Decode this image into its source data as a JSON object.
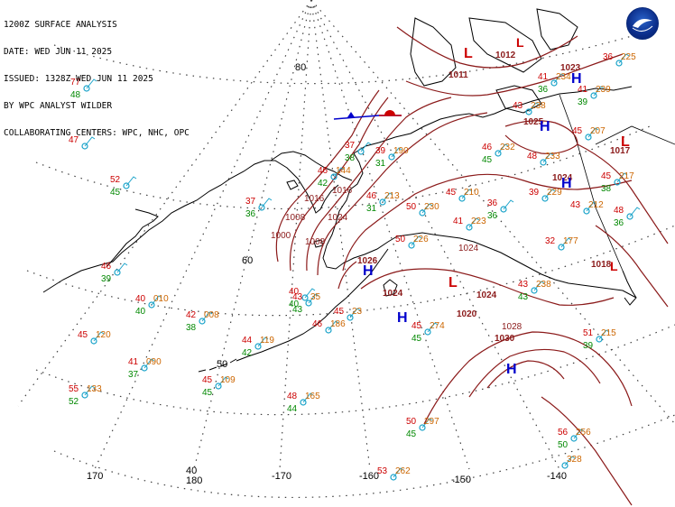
{
  "header": {
    "lines": [
      "1200Z SURFACE ANALYSIS",
      "DATE: WED JUN 11 2025",
      "ISSUED: 1328Z WED JUN 11 2025",
      "BY WPC ANALYST WILDER",
      "COLLABORATING CENTERS: WPC, NHC, OPC"
    ]
  },
  "logo": {
    "name": "noaa-logo",
    "text": "NOAA"
  },
  "colors": {
    "isobar": "#8b1a1a",
    "temp": "#cc0000",
    "dewpoint": "#008800",
    "pressure": "#cc6600",
    "station": "#1aa3c9",
    "high": "#0000cc",
    "low": "#cc0000",
    "grid": "#000000"
  },
  "lat_labels": [
    "80",
    "60",
    "50",
    "40"
  ],
  "lon_labels": [
    "170",
    "180",
    "-170",
    "-160",
    "-150",
    "-140"
  ],
  "pressure_centers": [
    {
      "type": "L",
      "value": "1011"
    },
    {
      "type": "L",
      "value": "1012"
    },
    {
      "type": "H",
      "value": "1023"
    },
    {
      "type": "H",
      "value": "1025"
    },
    {
      "type": "H",
      "value": "1024"
    },
    {
      "type": "L",
      "value": "1017"
    },
    {
      "type": "H",
      "value": "1026"
    },
    {
      "type": "L",
      "value": "1024"
    },
    {
      "type": "H",
      "value": "1020"
    },
    {
      "type": "L",
      "value": "1024"
    },
    {
      "type": "H",
      "value": "1030"
    },
    {
      "type": "L",
      "value": "1018"
    }
  ],
  "isobar_labels": [
    "1000",
    "1008",
    "1016",
    "1024",
    "1028",
    "1024",
    "1008",
    "1016"
  ],
  "stations": [
    {
      "t": "77",
      "td": "48",
      "p": ""
    },
    {
      "t": "47",
      "td": "",
      "p": ""
    },
    {
      "t": "52",
      "td": "45",
      "p": ""
    },
    {
      "t": "46",
      "td": "39",
      "p": ""
    },
    {
      "t": "40",
      "td": "40",
      "p": "010"
    },
    {
      "t": "42",
      "td": "38",
      "p": "008"
    },
    {
      "t": "45",
      "td": "",
      "p": "120"
    },
    {
      "t": "41",
      "td": "37",
      "p": "090"
    },
    {
      "t": "45",
      "td": "45",
      "p": "109"
    },
    {
      "t": "55",
      "td": "52",
      "p": "133"
    },
    {
      "t": "44",
      "td": "42",
      "p": "119"
    },
    {
      "t": "48",
      "td": "44",
      "p": "165"
    },
    {
      "t": "40",
      "td": "40",
      "p": ""
    },
    {
      "t": "43",
      "td": "43",
      "p": "35"
    },
    {
      "t": "46",
      "td": "",
      "p": "186"
    },
    {
      "t": "45",
      "td": "",
      "p": "23"
    },
    {
      "t": "37",
      "td": "36",
      "p": ""
    },
    {
      "t": "37",
      "td": "38",
      "p": ""
    },
    {
      "t": "46",
      "td": "42",
      "p": "144"
    },
    {
      "t": "39",
      "td": "31",
      "p": "190"
    },
    {
      "t": "46",
      "td": "31",
      "p": "213"
    },
    {
      "t": "50",
      "td": "",
      "p": "230"
    },
    {
      "t": "50",
      "td": "",
      "p": "226"
    },
    {
      "t": "45",
      "td": "",
      "p": "210"
    },
    {
      "t": "41",
      "td": "",
      "p": "223"
    },
    {
      "t": "36",
      "td": "36",
      "p": ""
    },
    {
      "t": "46",
      "td": "45",
      "p": "232"
    },
    {
      "t": "48",
      "td": "",
      "p": "233"
    },
    {
      "t": "39",
      "td": "",
      "p": "229"
    },
    {
      "t": "43",
      "td": "",
      "p": "212"
    },
    {
      "t": "32",
      "td": "",
      "p": "177"
    },
    {
      "t": "43",
      "td": "43",
      "p": "238"
    },
    {
      "t": "45",
      "td": "45",
      "p": "274"
    },
    {
      "t": "50",
      "td": "45",
      "p": "297"
    },
    {
      "t": "53",
      "td": "",
      "p": "262"
    },
    {
      "t": "56",
      "td": "50",
      "p": "256"
    },
    {
      "t": "51",
      "td": "39",
      "p": "215"
    },
    {
      "t": "41",
      "td": "36",
      "p": "234"
    },
    {
      "t": "41",
      "td": "39",
      "p": "239"
    },
    {
      "t": "43",
      "td": "",
      "p": "238"
    },
    {
      "t": "45",
      "td": "",
      "p": "207"
    },
    {
      "t": "36",
      "td": "",
      "p": "225"
    },
    {
      "t": "45",
      "td": "38",
      "p": "217"
    },
    {
      "t": "48",
      "td": "36",
      "p": ""
    },
    {
      "t": "",
      "td": "",
      "p": "328"
    }
  ]
}
